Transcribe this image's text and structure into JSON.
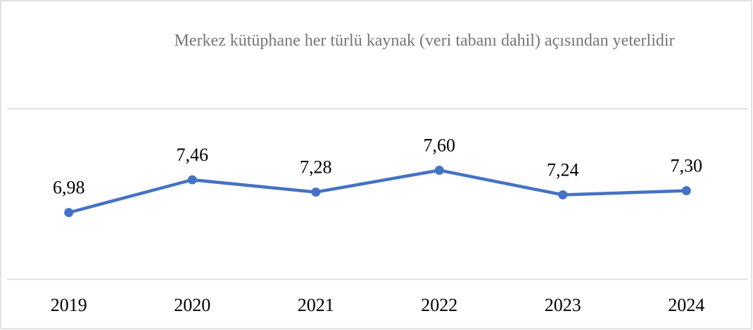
{
  "chart_data": {
    "type": "line",
    "title": "Merkez kütüphane her türlü kaynak (veri tabanı dahil) açısından yeterlidir",
    "categories": [
      "2019",
      "2020",
      "2021",
      "2022",
      "2023",
      "2024"
    ],
    "series": [
      {
        "name": "Merkez kütüphane her türlü kaynak (veri tabanı dahil) açısından yeterlidir",
        "color": "#4472c4",
        "values": [
          6.98,
          7.46,
          7.28,
          7.6,
          7.24,
          7.3
        ],
        "value_labels": [
          "6,98",
          "7,46",
          "7,28",
          "7,60",
          "7,24",
          "7,30"
        ]
      }
    ],
    "ylim": [
      6,
      8.5
    ]
  }
}
